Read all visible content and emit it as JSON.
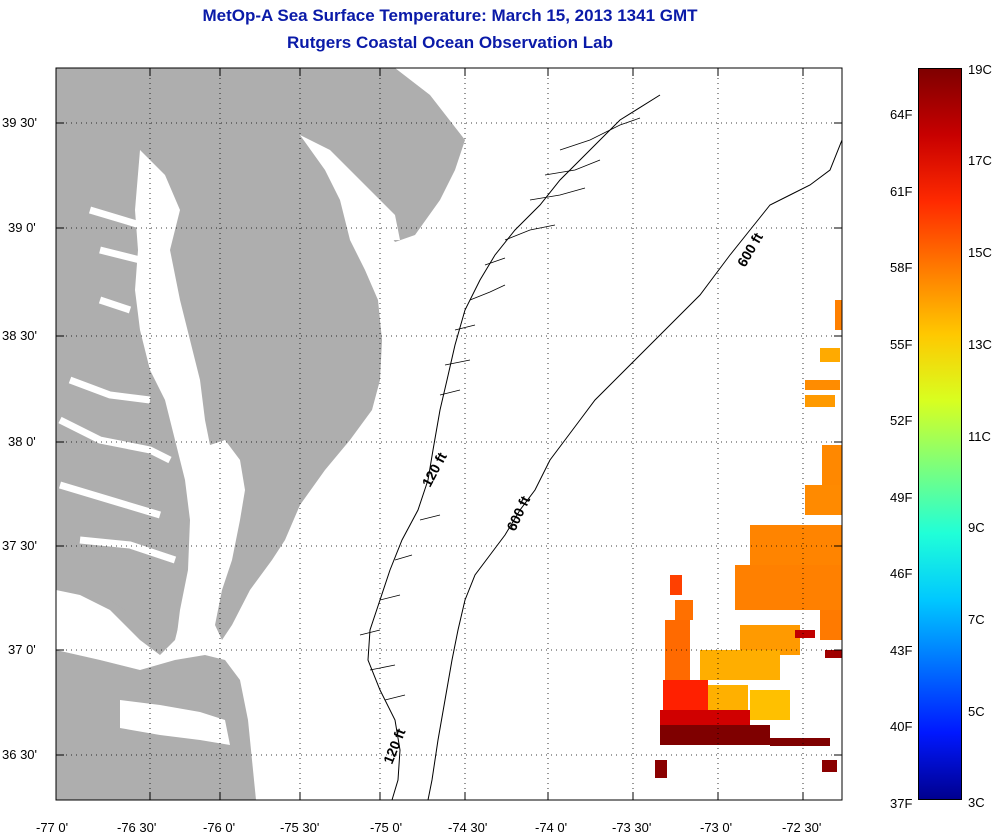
{
  "header": {
    "title": "MetOp-A Sea Surface Temperature:  March 15, 2013 1341 GMT",
    "subtitle": "Rutgers Coastal Ocean Observation Lab"
  },
  "axes": {
    "lon_labels": [
      "-77 0'",
      "-76 30'",
      "-76 0'",
      "-75 30'",
      "-75 0'",
      "-74 30'",
      "-74 0'",
      "-73 30'",
      "-73 0'",
      "-72 30'"
    ],
    "lat_labels": [
      "39 30'",
      "39 0'",
      "38 30'",
      "38 0'",
      "37 30'",
      "37 0'",
      "36 30'"
    ]
  },
  "contours": {
    "labels": [
      "600 ft",
      "120 ft",
      "600 ft",
      "120 ft"
    ]
  },
  "colorbar": {
    "celsius_labels": [
      "19C",
      "17C",
      "15C",
      "13C",
      "11C",
      "9C",
      "7C",
      "5C",
      "3C"
    ],
    "fahrenheit_labels": [
      "64F",
      "61F",
      "58F",
      "55F",
      "52F",
      "49F",
      "46F",
      "43F",
      "40F",
      "37F"
    ],
    "colors": [
      "#7f0000",
      "#c80000",
      "#ff2a00",
      "#ff7a00",
      "#ffc800",
      "#d8ff20",
      "#7cff7c",
      "#20ffd8",
      "#00c8ff",
      "#0070ff",
      "#0018ff",
      "#00008f"
    ]
  },
  "colors": {
    "land": "#aeaeae",
    "ocean": "#ffffff",
    "title": "#0a1aa8"
  }
}
